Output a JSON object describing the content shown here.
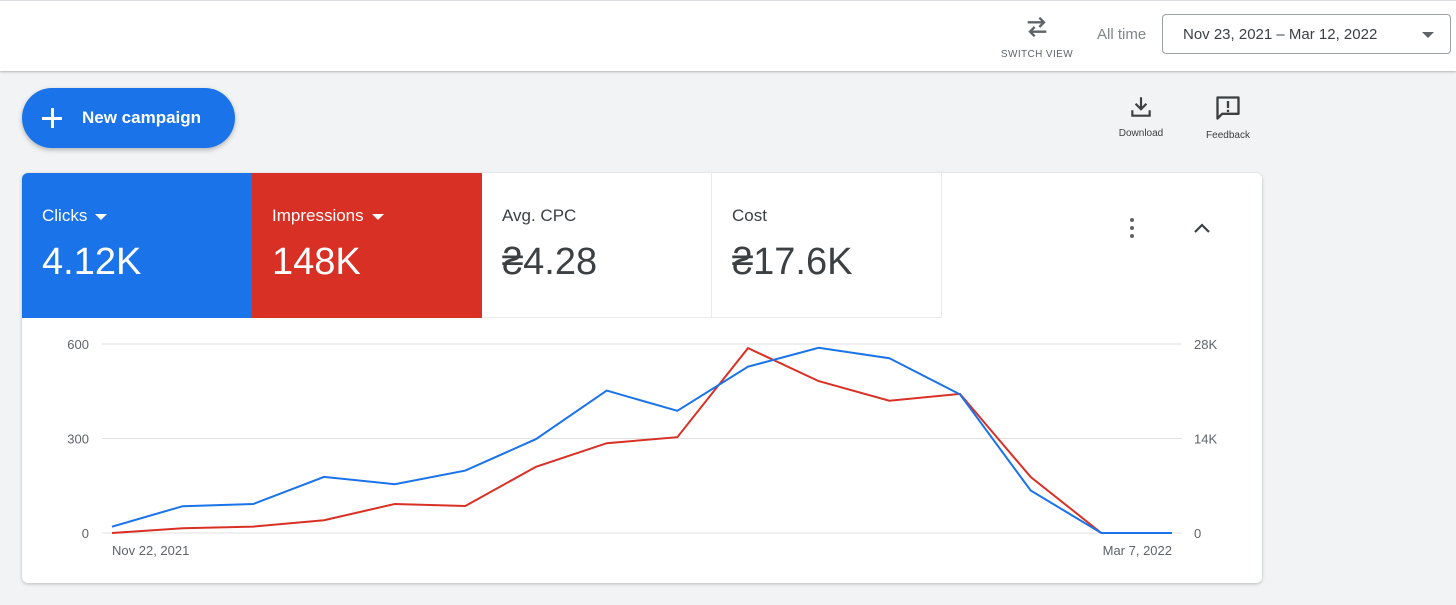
{
  "topbar": {
    "switch_view_label": "SWITCH VIEW",
    "all_time_label": "All time",
    "date_range": "Nov 23, 2021 – Mar 12, 2022"
  },
  "actions": {
    "new_campaign_label": "New campaign",
    "download_label": "Download",
    "feedback_label": "Feedback"
  },
  "metrics": [
    {
      "name": "Clicks",
      "value": "4.12K",
      "color": "#1a73e8",
      "selected": true
    },
    {
      "name": "Impressions",
      "value": "148K",
      "color": "#d93025",
      "selected": true
    },
    {
      "name": "Avg. CPC",
      "value": "₴4.28",
      "selected": false
    },
    {
      "name": "Cost",
      "value": "₴17.6K",
      "selected": false
    }
  ],
  "chart_data": {
    "type": "line",
    "x_labels": [
      "Nov 22, 2021",
      "Mar 7, 2022"
    ],
    "left_axis": {
      "ticks": [
        "0",
        "300",
        "600"
      ],
      "ylim": [
        0,
        600
      ]
    },
    "right_axis": {
      "ticks": [
        "0",
        "14K",
        "28K"
      ],
      "ylim": [
        0,
        28000
      ]
    },
    "grid": true,
    "series": [
      {
        "name": "Clicks",
        "axis": "left",
        "color": "#1a73e8",
        "values": [
          20,
          85,
          92,
          178,
          155,
          198,
          298,
          452,
          388,
          528,
          588,
          555,
          440,
          135,
          0,
          0
        ]
      },
      {
        "name": "Impressions",
        "axis": "right",
        "color": "#d93025",
        "values": [
          0,
          700,
          950,
          1900,
          4300,
          4000,
          9800,
          13300,
          14200,
          27400,
          22500,
          19600,
          20600,
          8300,
          0,
          0
        ]
      }
    ]
  }
}
